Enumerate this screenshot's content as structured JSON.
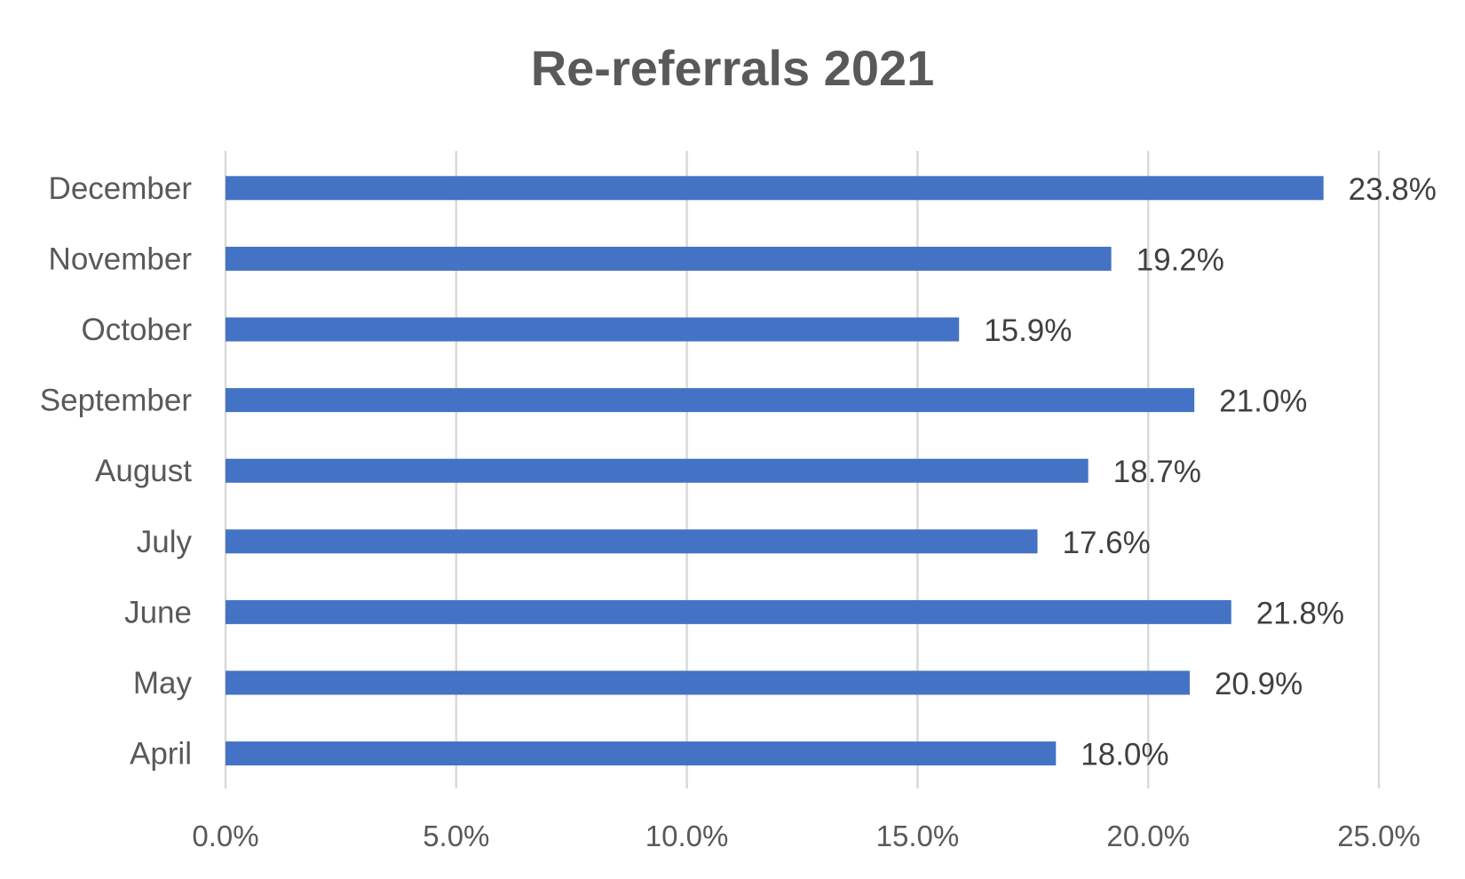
{
  "chart_data": {
    "type": "bar",
    "orientation": "horizontal",
    "title": "Re-referrals 2021",
    "xlabel": "",
    "ylabel": "",
    "categories": [
      "April",
      "May",
      "June",
      "July",
      "August",
      "September",
      "October",
      "November",
      "December"
    ],
    "values": [
      18.0,
      20.9,
      21.8,
      17.6,
      18.7,
      21.0,
      15.9,
      19.2,
      23.8
    ],
    "data_labels": [
      "18.0%",
      "20.9%",
      "21.8%",
      "17.6%",
      "18.7%",
      "21.0%",
      "15.9%",
      "19.2%",
      "23.8%"
    ],
    "xlim": [
      0,
      25
    ],
    "xticks": [
      0,
      5,
      10,
      15,
      20,
      25
    ],
    "xtick_labels": [
      "0.0%",
      "5.0%",
      "10.0%",
      "15.0%",
      "20.0%",
      "25.0%"
    ],
    "grid": "vertical",
    "legend": "none",
    "bar_color": "#4472C4"
  }
}
